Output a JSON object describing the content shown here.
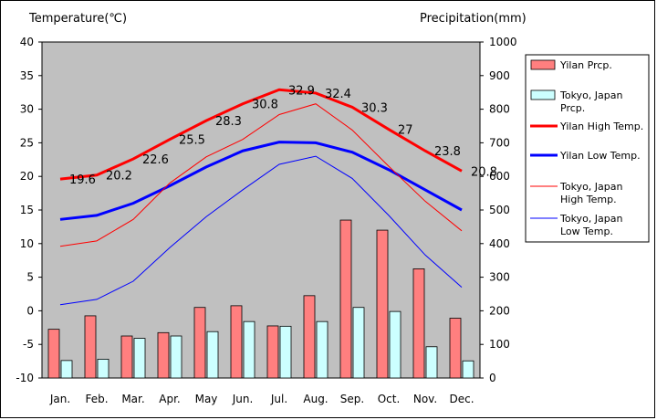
{
  "chart_data": {
    "type": "bar+line",
    "categories": [
      "Jan.",
      "Feb.",
      "Mar.",
      "Apr.",
      "May",
      "Jun.",
      "Jul.",
      "Aug.",
      "Sep.",
      "Oct.",
      "Nov.",
      "Dec."
    ],
    "left_axis": {
      "title": "Temperature(℃)",
      "ylim": [
        -10,
        40
      ],
      "ticks": [
        40,
        35,
        30,
        25,
        20,
        15,
        10,
        5,
        0,
        -5,
        -10
      ]
    },
    "right_axis": {
      "title": "Precipitation(mm)",
      "ylim": [
        0,
        1000
      ],
      "ticks": [
        1000,
        900,
        800,
        700,
        600,
        500,
        400,
        300,
        200,
        100,
        0
      ]
    },
    "grid": false,
    "legend_position": "right",
    "bar_series": [
      {
        "name": "Yilan Prcp.",
        "color": "#ff7f7f",
        "values": [
          145,
          185,
          125,
          135,
          210,
          215,
          155,
          245,
          470,
          440,
          325,
          178
        ]
      },
      {
        "name": "Tokyo, Japan Prcp.",
        "color": "#ccffff",
        "values": [
          52,
          56,
          118,
          125,
          138,
          168,
          154,
          168,
          210,
          198,
          93,
          51
        ]
      }
    ],
    "line_series": [
      {
        "name": "Yilan High Temp.",
        "color": "#ff0000",
        "width": 3,
        "values": [
          19.6,
          20.2,
          22.6,
          25.5,
          28.3,
          30.8,
          32.9,
          32.4,
          30.3,
          27,
          23.8,
          20.8
        ]
      },
      {
        "name": "Yilan Low Temp.",
        "color": "#0000ff",
        "width": 3,
        "values": [
          13.6,
          14.2,
          16.0,
          18.6,
          21.4,
          23.8,
          25.1,
          25.0,
          23.6,
          21.0,
          18.0,
          15.0
        ]
      },
      {
        "name": "Tokyo, Japan High Temp.",
        "color": "#ff0000",
        "width": 1,
        "values": [
          9.6,
          10.4,
          13.6,
          19.0,
          22.9,
          25.5,
          29.2,
          30.8,
          26.9,
          21.5,
          16.3,
          11.9
        ]
      },
      {
        "name": "Tokyo, Japan Low Temp.",
        "color": "#0000ff",
        "width": 1,
        "values": [
          0.9,
          1.7,
          4.4,
          9.4,
          14.0,
          18.0,
          21.8,
          23.0,
          19.7,
          14.2,
          8.3,
          3.5
        ]
      }
    ],
    "data_labels": {
      "series": "Yilan High Temp.",
      "values": [
        "19.6",
        "20.2",
        "22.6",
        "25.5",
        "28.3",
        "30.8",
        "32.9",
        "32.4",
        "30.3",
        "27",
        "23.8",
        "20.8"
      ]
    }
  }
}
